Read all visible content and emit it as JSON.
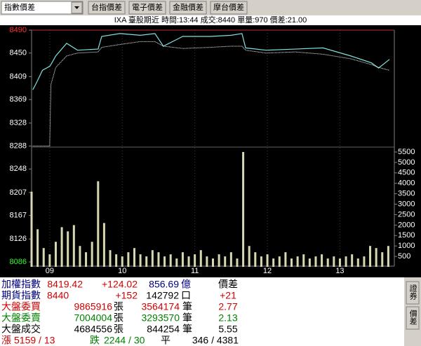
{
  "toolbar": {
    "dropdown": "指數價差",
    "buttons": [
      "台指價差",
      "電子價差",
      "金融價差",
      "摩台價差"
    ]
  },
  "info": "IXA   臺股期近 時間:13:44 成交:8440 單量:970 價差:21.00",
  "chart_data": [
    {
      "type": "line",
      "x": [
        1,
        4,
        9,
        15,
        16,
        20,
        29,
        38,
        55,
        58,
        73,
        90,
        102,
        109,
        125,
        148,
        165,
        174,
        177,
        194,
        218,
        241,
        264,
        281,
        287,
        296
      ],
      "xlim": [
        0,
        300
      ],
      "xticks": [
        {
          "value": 15,
          "label": "09"
        },
        {
          "value": 75,
          "label": "10"
        },
        {
          "value": 135,
          "label": "11"
        },
        {
          "value": 195,
          "label": "12"
        },
        {
          "value": 255,
          "label": "13"
        }
      ],
      "ylim": [
        8086,
        8490
      ],
      "yticks": [
        8490,
        8450,
        8409,
        8369,
        8328,
        8288,
        8248,
        8207,
        8167,
        8126,
        8086
      ],
      "series": [
        {
          "color": "#7fe0e0",
          "values": [
            8386,
            8398,
            8420,
            8427,
            8430,
            8445,
            8467,
            8455,
            8457,
            8479,
            8484,
            8481,
            8484,
            8462,
            8479,
            8479,
            8481,
            8484,
            8459,
            8455,
            8457,
            8459,
            8445,
            8433,
            8424,
            8439
          ]
        },
        {
          "color": "#ffffff",
          "values": [
            8288,
            8288,
            8288,
            8288,
            8395,
            8425,
            8445,
            8450,
            8452,
            8460,
            8465,
            8470,
            8470,
            8462,
            8458,
            8460,
            8462,
            8462,
            8455,
            8450,
            8452,
            8448,
            8440,
            8430,
            8425,
            8420
          ]
        }
      ]
    },
    {
      "type": "bar",
      "x": [
        0,
        5,
        10,
        15,
        20,
        25,
        30,
        35,
        40,
        45,
        50,
        55,
        60,
        65,
        70,
        75,
        80,
        85,
        90,
        95,
        100,
        105,
        110,
        115,
        120,
        125,
        130,
        135,
        140,
        145,
        150,
        155,
        160,
        165,
        170,
        175,
        180,
        185,
        190,
        195,
        200,
        205,
        210,
        215,
        220,
        225,
        230,
        235,
        240,
        245,
        250,
        255,
        260,
        265,
        270,
        275,
        280,
        285,
        290,
        295
      ],
      "xlim": [
        0,
        300
      ],
      "color": "#d8d8b0",
      "values": [
        3600,
        1800,
        900,
        600,
        1200,
        1900,
        1700,
        2000,
        1000,
        700,
        1200,
        4100,
        2100,
        800,
        600,
        500,
        700,
        900,
        600,
        500,
        800,
        700,
        500,
        600,
        400,
        700,
        500,
        600,
        800,
        500,
        400,
        600,
        500,
        700,
        400,
        5500,
        1000,
        700,
        500,
        600,
        400,
        500,
        700,
        400,
        500,
        600,
        400,
        500,
        600,
        400,
        500,
        400,
        500,
        600,
        400,
        500,
        1000,
        900,
        700,
        1000
      ],
      "ylim": [
        0,
        5500
      ],
      "yticks": [
        5500,
        5000,
        4500,
        4000,
        3500,
        3000,
        2500,
        2000,
        1500,
        1000,
        500
      ]
    }
  ],
  "quote_panel": {
    "rows": [
      [
        "加權指數",
        "8419.42",
        "+124.02",
        "856.69",
        "億",
        "價差"
      ],
      [
        "期貨指數",
        "8440",
        "+152",
        "142792",
        "口",
        "+21"
      ],
      [
        "大盤委買",
        "9865916",
        "張",
        "3564174",
        "筆",
        "2.77"
      ],
      [
        "大盤委賣",
        "7004004",
        "張",
        "3293570",
        "筆",
        "2.13"
      ],
      [
        "大盤成交",
        "4684556",
        "張",
        "844254",
        "筆",
        "5.55"
      ],
      [
        "漲",
        "5159 / 13",
        "跌",
        "2244 / 30",
        "平",
        "346 / 4381"
      ]
    ]
  },
  "side_tabs": [
    "證券",
    "價差"
  ]
}
